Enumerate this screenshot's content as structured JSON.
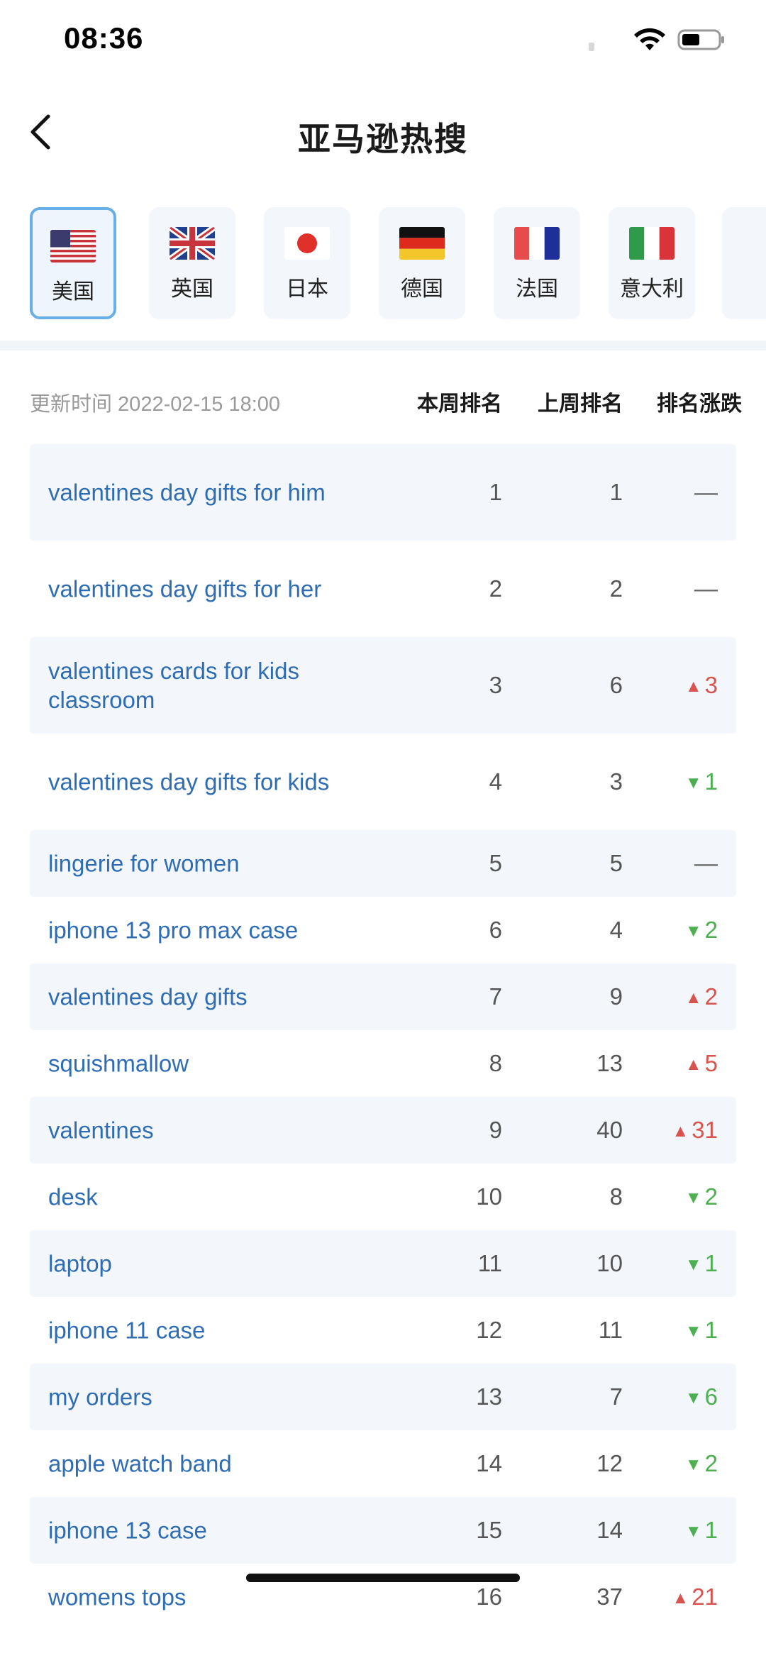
{
  "status_bar": {
    "time": "08:36"
  },
  "header": {
    "title": "亚马逊热搜"
  },
  "countries": [
    {
      "label": "美国",
      "flag": "us-flag-icon",
      "active": true
    },
    {
      "label": "英国",
      "flag": "uk-flag-icon",
      "active": false
    },
    {
      "label": "日本",
      "flag": "japan-flag-icon",
      "active": false
    },
    {
      "label": "德国",
      "flag": "germany-flag-icon",
      "active": false
    },
    {
      "label": "法国",
      "flag": "france-flag-icon",
      "active": false
    },
    {
      "label": "意大利",
      "flag": "italy-flag-icon",
      "active": false
    }
  ],
  "table": {
    "update_time": "更新时间 2022-02-15 18:00",
    "col_this_week": "本周排名",
    "col_last_week": "上周排名",
    "col_change": "排名涨跌",
    "rows": [
      {
        "keyword": "valentines day gifts for him",
        "this_week": "1",
        "last_week": "1",
        "change": "—",
        "dir": "flat"
      },
      {
        "keyword": "valentines day gifts for her",
        "this_week": "2",
        "last_week": "2",
        "change": "—",
        "dir": "flat"
      },
      {
        "keyword": "valentines cards for kids classroom",
        "this_week": "3",
        "last_week": "6",
        "change": "3",
        "dir": "up"
      },
      {
        "keyword": "valentines day gifts for kids",
        "this_week": "4",
        "last_week": "3",
        "change": "1",
        "dir": "down"
      },
      {
        "keyword": "lingerie for women",
        "this_week": "5",
        "last_week": "5",
        "change": "—",
        "dir": "flat"
      },
      {
        "keyword": "iphone 13 pro max case",
        "this_week": "6",
        "last_week": "4",
        "change": "2",
        "dir": "down"
      },
      {
        "keyword": "valentines day gifts",
        "this_week": "7",
        "last_week": "9",
        "change": "2",
        "dir": "up"
      },
      {
        "keyword": "squishmallow",
        "this_week": "8",
        "last_week": "13",
        "change": "5",
        "dir": "up"
      },
      {
        "keyword": "valentines",
        "this_week": "9",
        "last_week": "40",
        "change": "31",
        "dir": "up"
      },
      {
        "keyword": "desk",
        "this_week": "10",
        "last_week": "8",
        "change": "2",
        "dir": "down"
      },
      {
        "keyword": "laptop",
        "this_week": "11",
        "last_week": "10",
        "change": "1",
        "dir": "down"
      },
      {
        "keyword": "iphone 11 case",
        "this_week": "12",
        "last_week": "11",
        "change": "1",
        "dir": "down"
      },
      {
        "keyword": "my orders",
        "this_week": "13",
        "last_week": "7",
        "change": "6",
        "dir": "down"
      },
      {
        "keyword": "apple watch band",
        "this_week": "14",
        "last_week": "12",
        "change": "2",
        "dir": "down"
      },
      {
        "keyword": "iphone 13 case",
        "this_week": "15",
        "last_week": "14",
        "change": "1",
        "dir": "down"
      },
      {
        "keyword": "womens tops",
        "this_week": "16",
        "last_week": "37",
        "change": "21",
        "dir": "up"
      }
    ]
  },
  "colors": {
    "up": "#d9534f",
    "down": "#4caf50",
    "keyword": "#2e6db4",
    "active_border": "#6aaee6"
  }
}
